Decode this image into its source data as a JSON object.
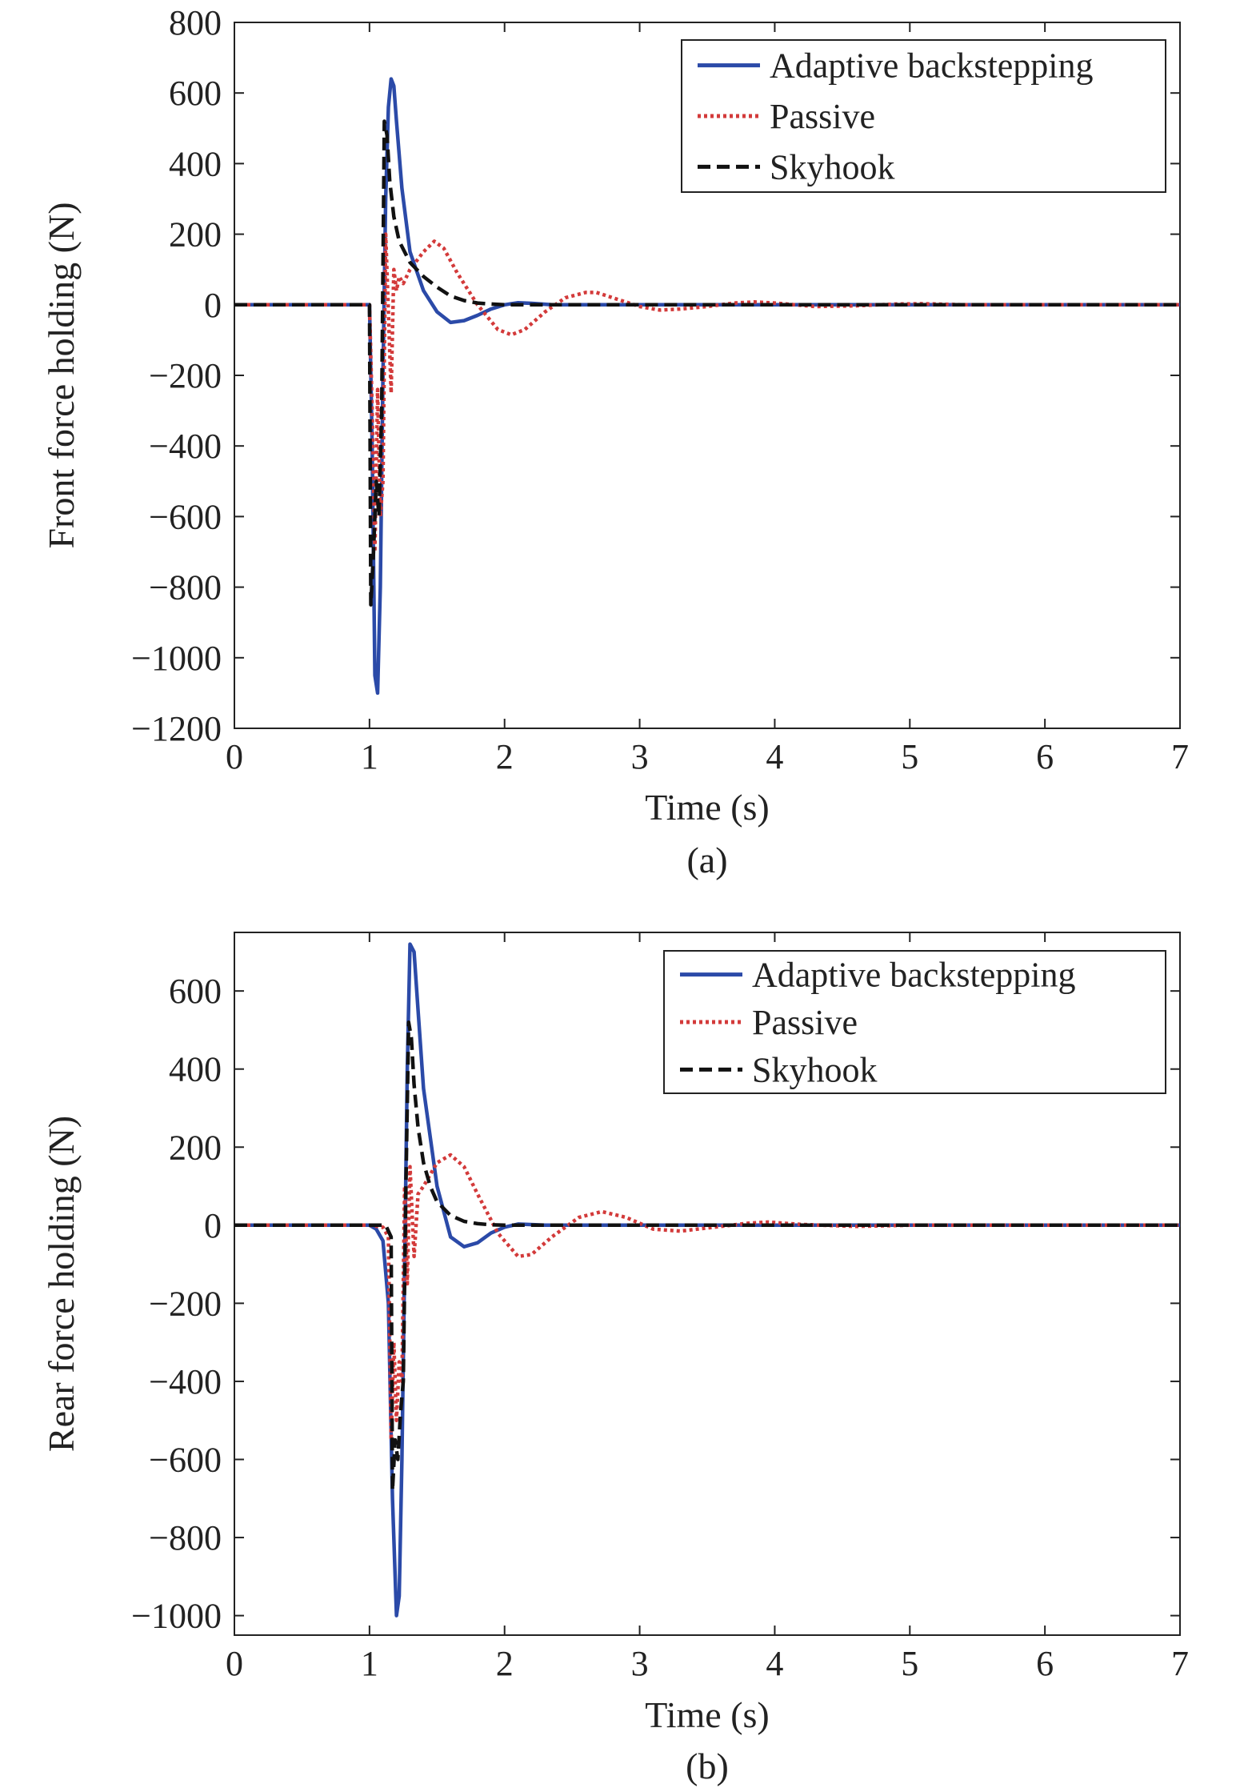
{
  "chart_data": [
    {
      "type": "line",
      "panel_label": "(a)",
      "xlabel": "Time (s)",
      "ylabel": "Front force holding (N)",
      "xlim": [
        0,
        7
      ],
      "ylim": [
        -1200,
        800
      ],
      "xticks": [
        0,
        1,
        2,
        3,
        4,
        5,
        6,
        7
      ],
      "xtick_labels": [
        "0",
        "1",
        "2",
        "3",
        "4",
        "5",
        "6",
        "7"
      ],
      "yticks": [
        800,
        600,
        400,
        200,
        0,
        -200,
        -400,
        -600,
        -800,
        -1000,
        -1200
      ],
      "ytick_labels": [
        "800",
        "600",
        "400",
        "200",
        "0",
        "−200",
        "−400",
        "−600",
        "−800",
        "−1000",
        "−1200"
      ],
      "grid": false,
      "legend_position": "top-right",
      "series": [
        {
          "name": "Adaptive backstepping",
          "color": "#2b4aa8",
          "style": "solid",
          "x": [
            0,
            1.0,
            1.02,
            1.04,
            1.06,
            1.08,
            1.1,
            1.12,
            1.14,
            1.16,
            1.18,
            1.2,
            1.24,
            1.3,
            1.4,
            1.5,
            1.6,
            1.7,
            1.8,
            1.9,
            2.0,
            2.1,
            2.2,
            2.35,
            2.5,
            3.0,
            7.0
          ],
          "y": [
            0,
            0,
            -400,
            -1050,
            -1100,
            -800,
            -200,
            300,
            560,
            640,
            620,
            520,
            330,
            150,
            40,
            -20,
            -50,
            -45,
            -30,
            -12,
            0,
            6,
            4,
            0,
            0,
            0,
            0
          ]
        },
        {
          "name": "Passive",
          "color": "#d33a3a",
          "style": "dotted",
          "x": [
            0,
            1.0,
            1.02,
            1.04,
            1.06,
            1.08,
            1.1,
            1.12,
            1.14,
            1.16,
            1.18,
            1.2,
            1.22,
            1.25,
            1.3,
            1.4,
            1.48,
            1.55,
            1.65,
            1.8,
            1.95,
            2.05,
            2.15,
            2.3,
            2.45,
            2.6,
            2.68,
            2.8,
            3.0,
            3.15,
            3.3,
            3.5,
            3.7,
            3.85,
            4.0,
            4.3,
            4.6,
            4.9,
            5.1,
            5.4,
            6.0,
            7.0
          ],
          "y": [
            0,
            0,
            -300,
            -700,
            -240,
            -600,
            -500,
            200,
            -20,
            -250,
            100,
            40,
            80,
            60,
            100,
            150,
            180,
            160,
            90,
            0,
            -70,
            -85,
            -70,
            -20,
            20,
            35,
            35,
            20,
            -5,
            -15,
            -12,
            -5,
            5,
            8,
            5,
            -5,
            -3,
            2,
            3,
            0,
            0,
            0
          ]
        },
        {
          "name": "Skyhook",
          "color": "#111111",
          "style": "dashed",
          "x": [
            0,
            1.0,
            1.01,
            1.03,
            1.05,
            1.07,
            1.09,
            1.11,
            1.13,
            1.15,
            1.18,
            1.22,
            1.3,
            1.4,
            1.5,
            1.6,
            1.7,
            1.8,
            1.9,
            2.0,
            2.2,
            2.5,
            7.0
          ],
          "y": [
            0,
            0,
            -850,
            -700,
            -500,
            -600,
            -300,
            520,
            480,
            350,
            250,
            180,
            120,
            80,
            50,
            25,
            12,
            5,
            2,
            0,
            0,
            0,
            0
          ]
        }
      ]
    },
    {
      "type": "line",
      "panel_label": "(b)",
      "xlabel": "Time (s)",
      "ylabel": "Rear force holding (N)",
      "xlim": [
        0,
        7
      ],
      "ylim": [
        -1050,
        750
      ],
      "xticks": [
        0,
        1,
        2,
        3,
        4,
        5,
        6,
        7
      ],
      "xtick_labels": [
        "0",
        "1",
        "2",
        "3",
        "4",
        "5",
        "6",
        "7"
      ],
      "yticks": [
        600,
        400,
        200,
        0,
        -200,
        -400,
        -600,
        -800,
        -1000
      ],
      "ytick_labels": [
        "600",
        "400",
        "200",
        "0",
        "−200",
        "−400",
        "−600",
        "−800",
        "−1000"
      ],
      "grid": false,
      "legend_position": "top-right",
      "series": [
        {
          "name": "Adaptive backstepping",
          "color": "#2b4aa8",
          "style": "solid",
          "x": [
            0,
            1.0,
            1.05,
            1.1,
            1.14,
            1.17,
            1.2,
            1.22,
            1.24,
            1.26,
            1.28,
            1.3,
            1.33,
            1.36,
            1.4,
            1.5,
            1.6,
            1.7,
            1.8,
            1.9,
            2.0,
            2.1,
            2.3,
            3.0,
            7.0
          ],
          "y": [
            0,
            0,
            -10,
            -40,
            -200,
            -700,
            -1000,
            -950,
            -600,
            -100,
            400,
            720,
            700,
            550,
            350,
            100,
            -30,
            -55,
            -45,
            -20,
            -5,
            3,
            0,
            0,
            0
          ]
        },
        {
          "name": "Passive",
          "color": "#d33a3a",
          "style": "dotted",
          "x": [
            0,
            1.0,
            1.1,
            1.14,
            1.16,
            1.18,
            1.2,
            1.22,
            1.24,
            1.26,
            1.28,
            1.3,
            1.33,
            1.36,
            1.4,
            1.5,
            1.6,
            1.7,
            1.8,
            1.95,
            2.1,
            2.2,
            2.35,
            2.55,
            2.72,
            2.9,
            3.1,
            3.3,
            3.55,
            3.8,
            3.95,
            4.2,
            4.6,
            5.0,
            7.0
          ],
          "y": [
            0,
            0,
            -5,
            -30,
            -550,
            -300,
            -500,
            -350,
            -400,
            100,
            -150,
            150,
            -80,
            80,
            100,
            160,
            180,
            150,
            80,
            -20,
            -80,
            -75,
            -30,
            20,
            35,
            20,
            -10,
            -15,
            -5,
            5,
            8,
            2,
            -3,
            0,
            0
          ]
        },
        {
          "name": "Skyhook",
          "color": "#111111",
          "style": "dashed",
          "x": [
            0,
            1.0,
            1.12,
            1.16,
            1.17,
            1.19,
            1.21,
            1.23,
            1.25,
            1.27,
            1.29,
            1.31,
            1.33,
            1.36,
            1.4,
            1.45,
            1.5,
            1.6,
            1.7,
            1.8,
            1.9,
            2.0,
            2.3,
            7.0
          ],
          "y": [
            0,
            0,
            0,
            -30,
            -680,
            -550,
            -600,
            -480,
            -400,
            100,
            520,
            480,
            360,
            250,
            160,
            100,
            60,
            25,
            10,
            4,
            1,
            0,
            0,
            0
          ]
        }
      ]
    }
  ]
}
